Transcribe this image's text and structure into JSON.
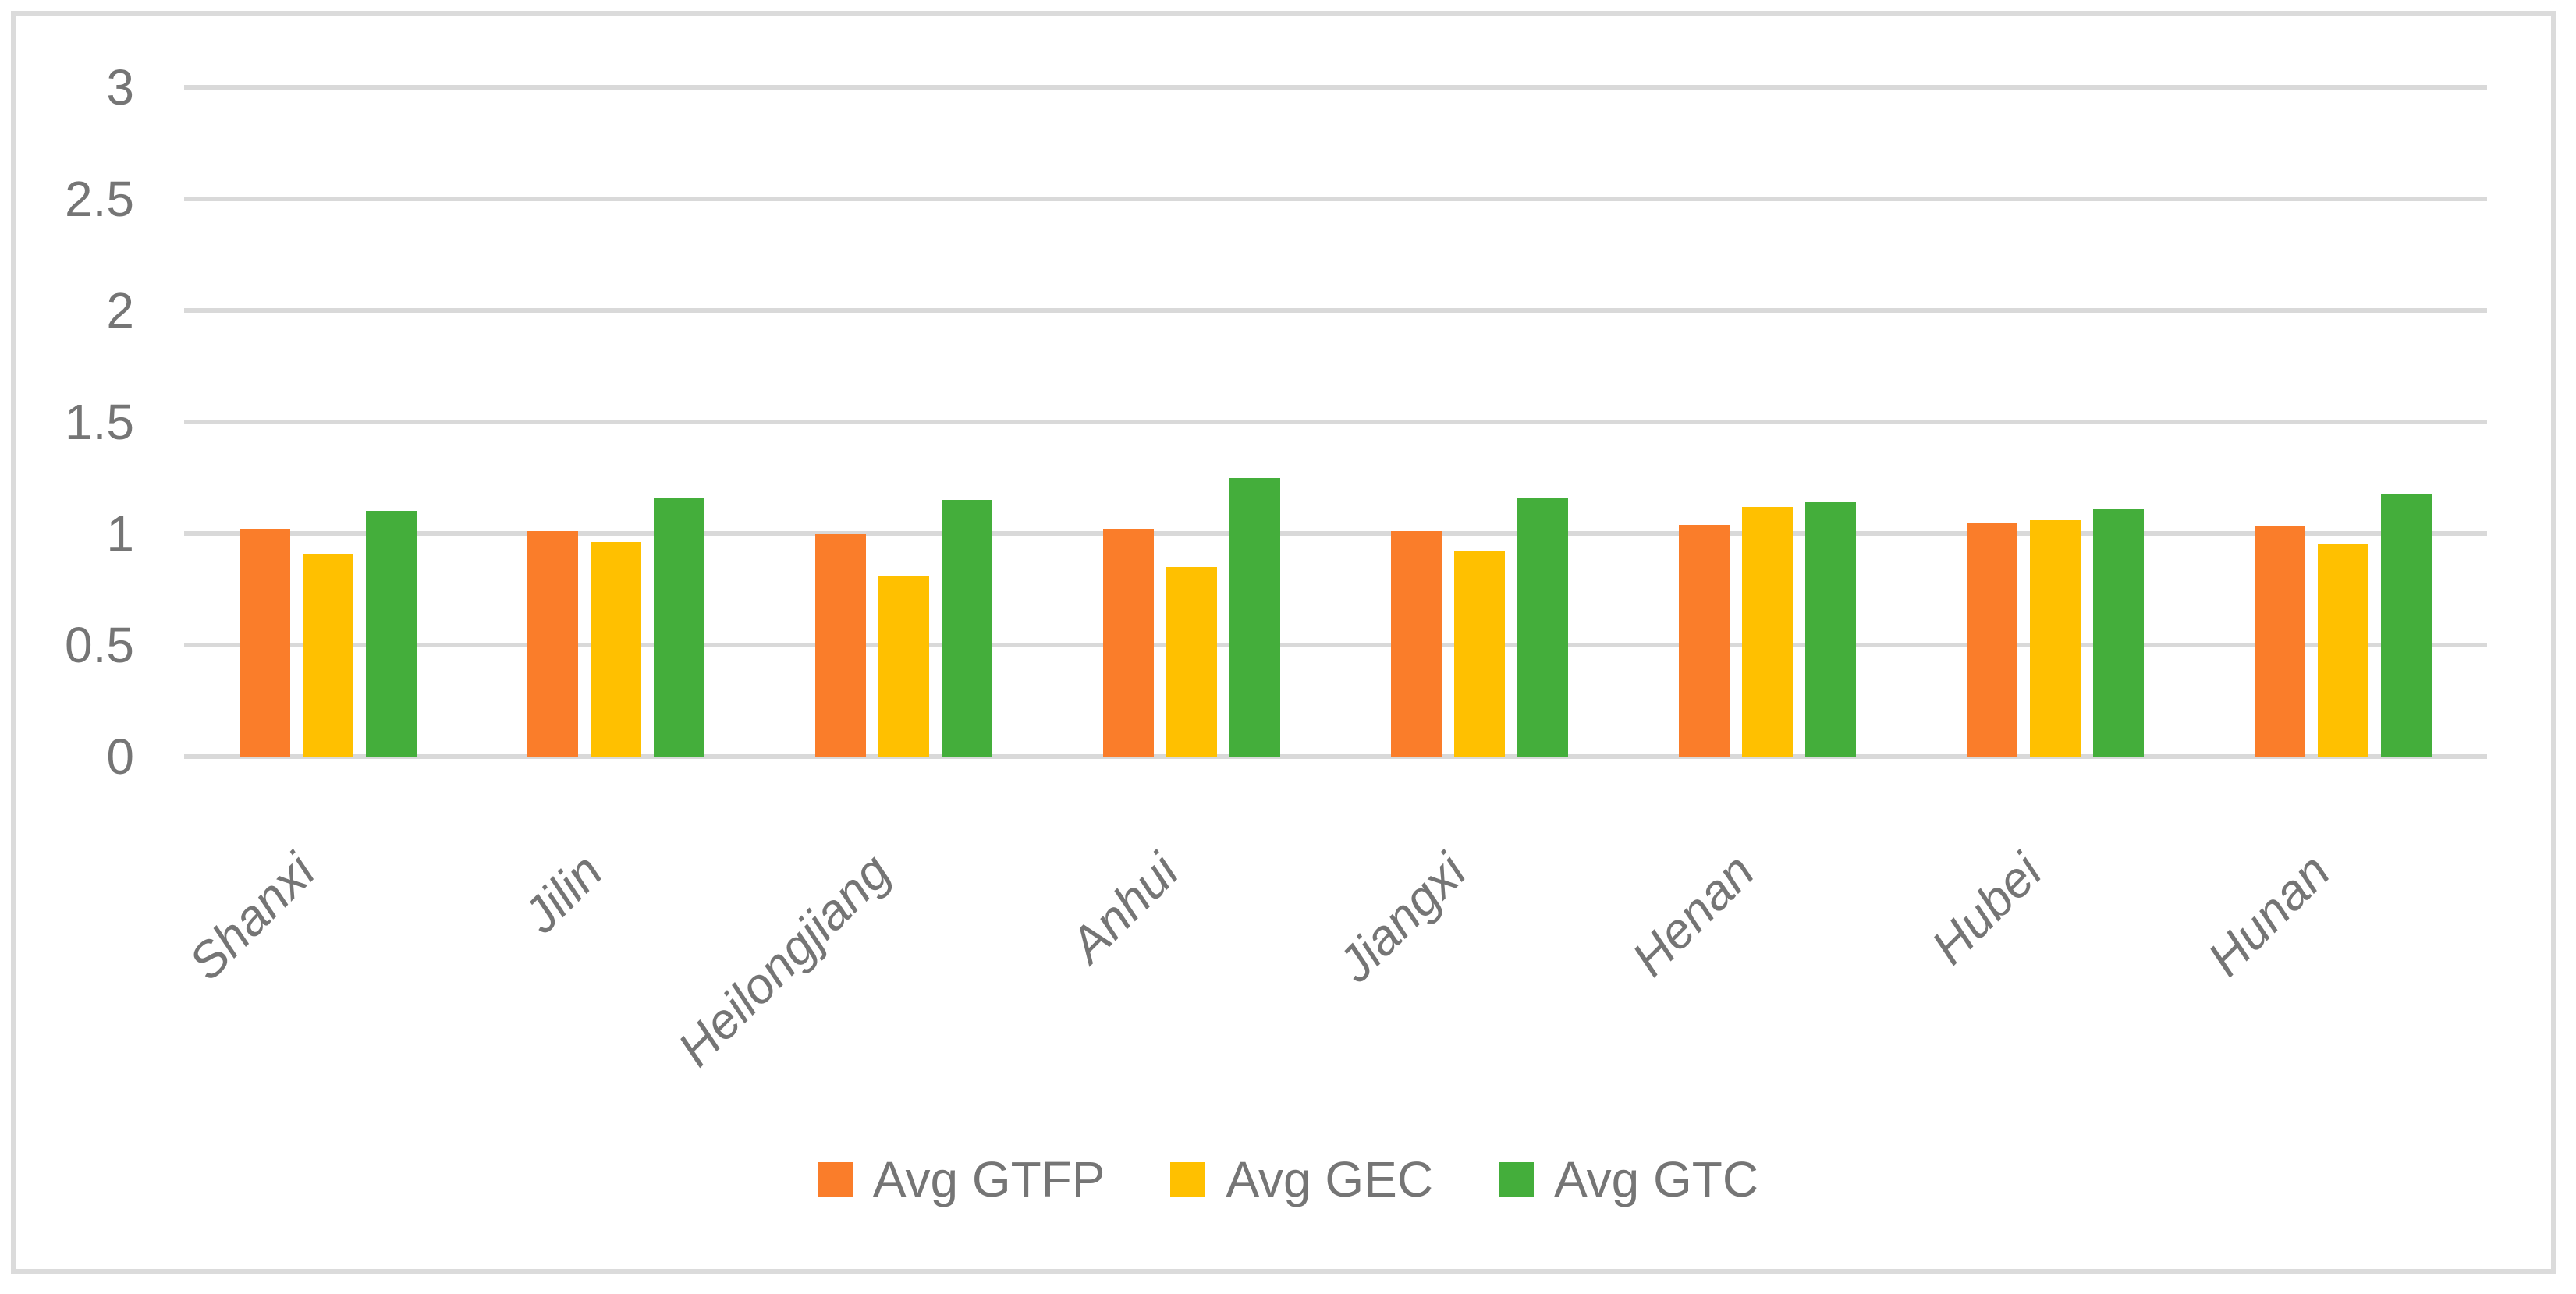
{
  "chart_data": {
    "type": "bar",
    "title": "",
    "xlabel": "",
    "ylabel": "",
    "categories": [
      "Shanxi",
      "Jilin",
      "Heilongjiang",
      "Anhui",
      "Jiangxi",
      "Henan",
      "Hubei",
      "Hunan"
    ],
    "series": [
      {
        "name": "Avg GTFP",
        "color": "#FA7D2A",
        "values": [
          1.02,
          1.01,
          1.0,
          1.02,
          1.01,
          1.04,
          1.05,
          1.03
        ]
      },
      {
        "name": "Avg GEC",
        "color": "#FFC000",
        "values": [
          0.91,
          0.96,
          0.81,
          0.85,
          0.92,
          1.12,
          1.06,
          0.95
        ]
      },
      {
        "name": "Avg GTC",
        "color": "#44AE3B",
        "values": [
          1.1,
          1.16,
          1.15,
          1.25,
          1.16,
          1.14,
          1.11,
          1.18
        ]
      }
    ],
    "ylim": [
      0,
      3
    ],
    "yticks": [
      "3",
      "2.5",
      "2",
      "1.5",
      "1",
      "0.5",
      "0"
    ],
    "ytick_values": [
      3,
      2.5,
      2,
      1.5,
      1,
      0.5,
      0
    ],
    "grid": true,
    "legend_position": "bottom"
  },
  "colors": {
    "background": "#FFFFFF",
    "frame_border": "#DBDBDB",
    "gridline": "#D9D9D9",
    "axis_text": "#757575"
  }
}
